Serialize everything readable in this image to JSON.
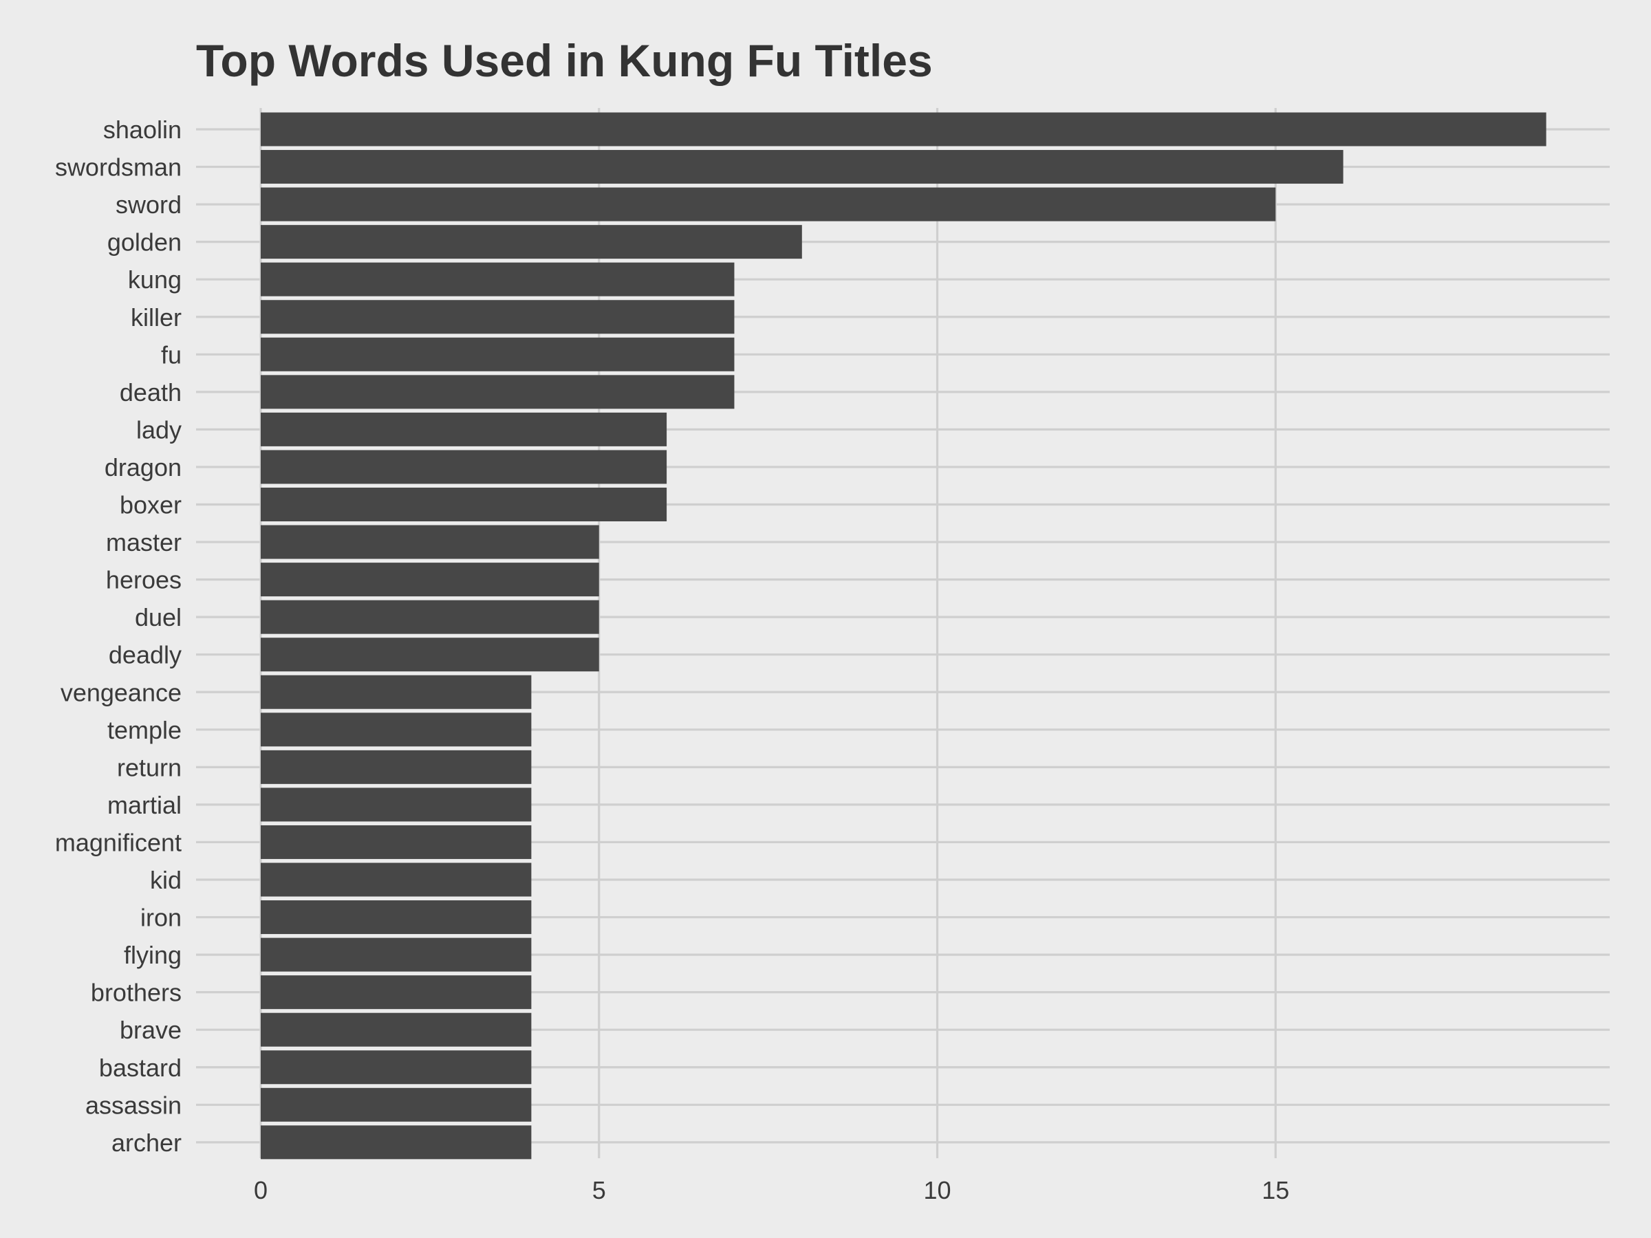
{
  "chart_data": {
    "type": "bar",
    "orientation": "horizontal",
    "title": "Top Words Used in Kung Fu Titles",
    "xlabel": "",
    "ylabel": "",
    "xlim": [
      0,
      19.9
    ],
    "x_ticks": [
      "0",
      "5",
      "10",
      "15"
    ],
    "grid": true,
    "categories": [
      "shaolin",
      "swordsman",
      "sword",
      "golden",
      "kung",
      "killer",
      "fu",
      "death",
      "lady",
      "dragon",
      "boxer",
      "master",
      "heroes",
      "duel",
      "deadly",
      "vengeance",
      "temple",
      "return",
      "martial",
      "magnificent",
      "kid",
      "iron",
      "flying",
      "brothers",
      "brave",
      "bastard",
      "assassin",
      "archer"
    ],
    "values": [
      19,
      16,
      15,
      8,
      7,
      7,
      7,
      7,
      6,
      6,
      6,
      5,
      5,
      5,
      5,
      4,
      4,
      4,
      4,
      4,
      4,
      4,
      4,
      4,
      4,
      4,
      4,
      4
    ],
    "colors": {
      "bar": "#474747",
      "background": "#ececec",
      "grid": "#cfcfcf",
      "title": "#333333",
      "text": "#3a3a3a"
    }
  }
}
